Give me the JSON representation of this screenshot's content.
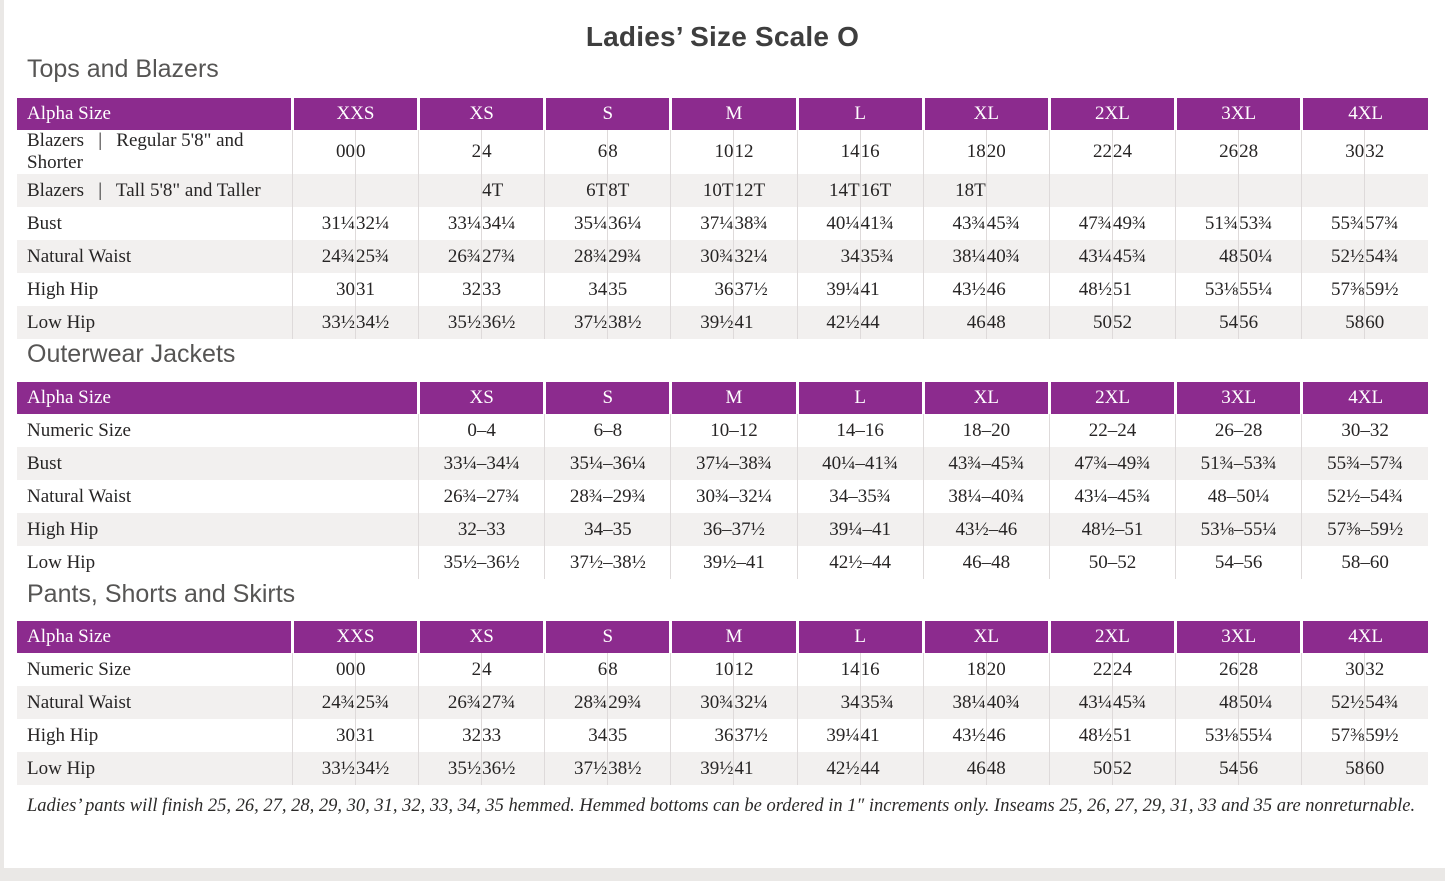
{
  "page": {
    "title": "Ladies’ Size Scale O",
    "footnote": "Ladies’ pants will finish 25, 26, 27, 28, 29, 30, 31, 32, 33, 34, 35 hemmed. Hemmed bottoms can be ordered in 1″ increments only. Inseams 25, 26, 27, 29, 31, 33 and 35 are nonreturnable."
  },
  "colors": {
    "accent_purple": "#8c2b8e",
    "header_text": "#ffffff",
    "stripe_gray": "#f2f0ef",
    "grid_line": "#dedada",
    "heading_gray": "#565554",
    "body_text": "#272525",
    "edge_gray": "#eae8e6"
  },
  "tables": [
    {
      "section": "Tops and Blazers",
      "header_label": "Alpha Size",
      "paired": true,
      "sizes": [
        "XXS",
        "XS",
        "S",
        "M",
        "L",
        "XL",
        "2XL",
        "3XL",
        "4XL"
      ],
      "rows": [
        {
          "label": "Blazers  |  Regular 5'8\" and Shorter",
          "cells": [
            "00",
            "0",
            "2",
            "4",
            "6",
            "8",
            "10",
            "12",
            "14",
            "16",
            "18",
            "20",
            "22",
            "24",
            "26",
            "28",
            "30",
            "32"
          ]
        },
        {
          "label": "Blazers  |  Tall 5'8\" and Taller",
          "cells": [
            "",
            "",
            "",
            "4T",
            "6T",
            "8T",
            "10T",
            "12T",
            "14T",
            "16T",
            "18T",
            "",
            "",
            "",
            "",
            "",
            "",
            ""
          ]
        },
        {
          "label": "Bust",
          "cells": [
            "31¼",
            "32¼",
            "33¼",
            "34¼",
            "35¼",
            "36¼",
            "37¼",
            "38¾",
            "40¼",
            "41¾",
            "43¾",
            "45¾",
            "47¾",
            "49¾",
            "51¾",
            "53¾",
            "55¾",
            "57¾"
          ]
        },
        {
          "label": "Natural Waist",
          "cells": [
            "24¾",
            "25¾",
            "26¾",
            "27¾",
            "28¾",
            "29¾",
            "30¾",
            "32¼",
            "34",
            "35¾",
            "38¼",
            "40¾",
            "43¼",
            "45¾",
            "48",
            "50¼",
            "52½",
            "54¾"
          ]
        },
        {
          "label": "High Hip",
          "cells": [
            "30",
            "31",
            "32",
            "33",
            "34",
            "35",
            "36",
            "37½",
            "39¼",
            "41",
            "43½",
            "46",
            "48½",
            "51",
            "53⅛",
            "55¼",
            "57⅜",
            "59½"
          ]
        },
        {
          "label": "Low Hip",
          "cells": [
            "33½",
            "34½",
            "35½",
            "36½",
            "37½",
            "38½",
            "39½",
            "41",
            "42½",
            "44",
            "46",
            "48",
            "50",
            "52",
            "54",
            "56",
            "58",
            "60"
          ]
        }
      ]
    },
    {
      "section": "Outerwear Jackets",
      "header_label": "Alpha Size",
      "paired": false,
      "sizes": [
        "XS",
        "S",
        "M",
        "L",
        "XL",
        "2XL",
        "3XL",
        "4XL"
      ],
      "rows": [
        {
          "label": "Numeric Size",
          "cells": [
            "0–4",
            "6–8",
            "10–12",
            "14–16",
            "18–20",
            "22–24",
            "26–28",
            "30–32"
          ]
        },
        {
          "label": "Bust",
          "cells": [
            "33¼–34¼",
            "35¼–36¼",
            "37¼–38¾",
            "40¼–41¾",
            "43¾–45¾",
            "47¾–49¾",
            "51¾–53¾",
            "55¾–57¾"
          ]
        },
        {
          "label": "Natural Waist",
          "cells": [
            "26¾–27¾",
            "28¾–29¾",
            "30¾–32¼",
            "34–35¾",
            "38¼–40¾",
            "43¼–45¾",
            "48–50¼",
            "52½–54¾"
          ]
        },
        {
          "label": "High Hip",
          "cells": [
            "32–33",
            "34–35",
            "36–37½",
            "39¼–41",
            "43½–46",
            "48½–51",
            "53⅛–55¼",
            "57⅜–59½"
          ]
        },
        {
          "label": "Low Hip",
          "cells": [
            "35½–36½",
            "37½–38½",
            "39½–41",
            "42½–44",
            "46–48",
            "50–52",
            "54–56",
            "58–60"
          ]
        }
      ]
    },
    {
      "section": "Pants, Shorts and Skirts",
      "header_label": "Alpha Size",
      "paired": true,
      "sizes": [
        "XXS",
        "XS",
        "S",
        "M",
        "L",
        "XL",
        "2XL",
        "3XL",
        "4XL"
      ],
      "rows": [
        {
          "label": "Numeric Size",
          "cells": [
            "00",
            "0",
            "2",
            "4",
            "6",
            "8",
            "10",
            "12",
            "14",
            "16",
            "18",
            "20",
            "22",
            "24",
            "26",
            "28",
            "30",
            "32"
          ]
        },
        {
          "label": "Natural Waist",
          "cells": [
            "24¾",
            "25¾",
            "26¾",
            "27¾",
            "28¾",
            "29¾",
            "30¾",
            "32¼",
            "34",
            "35¾",
            "38¼",
            "40¾",
            "43¼",
            "45¾",
            "48",
            "50¼",
            "52½",
            "54¾"
          ]
        },
        {
          "label": "High Hip",
          "cells": [
            "30",
            "31",
            "32",
            "33",
            "34",
            "35",
            "36",
            "37½",
            "39¼",
            "41",
            "43½",
            "46",
            "48½",
            "51",
            "53⅛",
            "55¼",
            "57⅜",
            "59½"
          ]
        },
        {
          "label": "Low Hip",
          "cells": [
            "33½",
            "34½",
            "35½",
            "36½",
            "37½",
            "38½",
            "39½",
            "41",
            "42½",
            "44",
            "46",
            "48",
            "50",
            "52",
            "54",
            "56",
            "58",
            "60"
          ]
        }
      ]
    }
  ]
}
